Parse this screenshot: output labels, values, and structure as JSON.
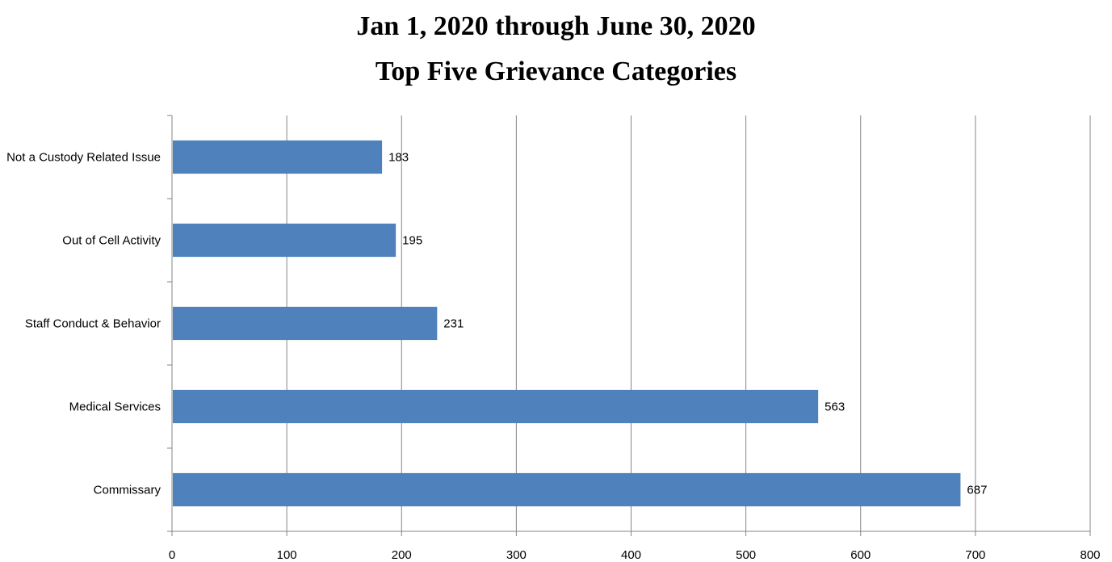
{
  "chart_data": {
    "type": "bar",
    "orientation": "horizontal",
    "title": "Jan 1, 2020 through June 30, 2020",
    "subtitle": "Top Five Grievance Categories",
    "categories": [
      "Not a Custody Related Issue",
      "Out of Cell Activity",
      "Staff Conduct & Behavior",
      "Medical Services",
      "Commissary"
    ],
    "values": [
      183,
      195,
      231,
      563,
      687
    ],
    "data_labels": [
      "183",
      "195",
      "231",
      "563",
      "687"
    ],
    "xlim": [
      0,
      800
    ],
    "x_ticks": [
      0,
      100,
      200,
      300,
      400,
      500,
      600,
      700,
      800
    ],
    "x_tick_labels": [
      "0",
      "100",
      "200",
      "300",
      "400",
      "500",
      "600",
      "700",
      "800"
    ],
    "xlabel": "",
    "ylabel": "",
    "grid": "vertical",
    "legend": "none",
    "bar_color": "#4F81BD",
    "grid_color": "#868686"
  }
}
